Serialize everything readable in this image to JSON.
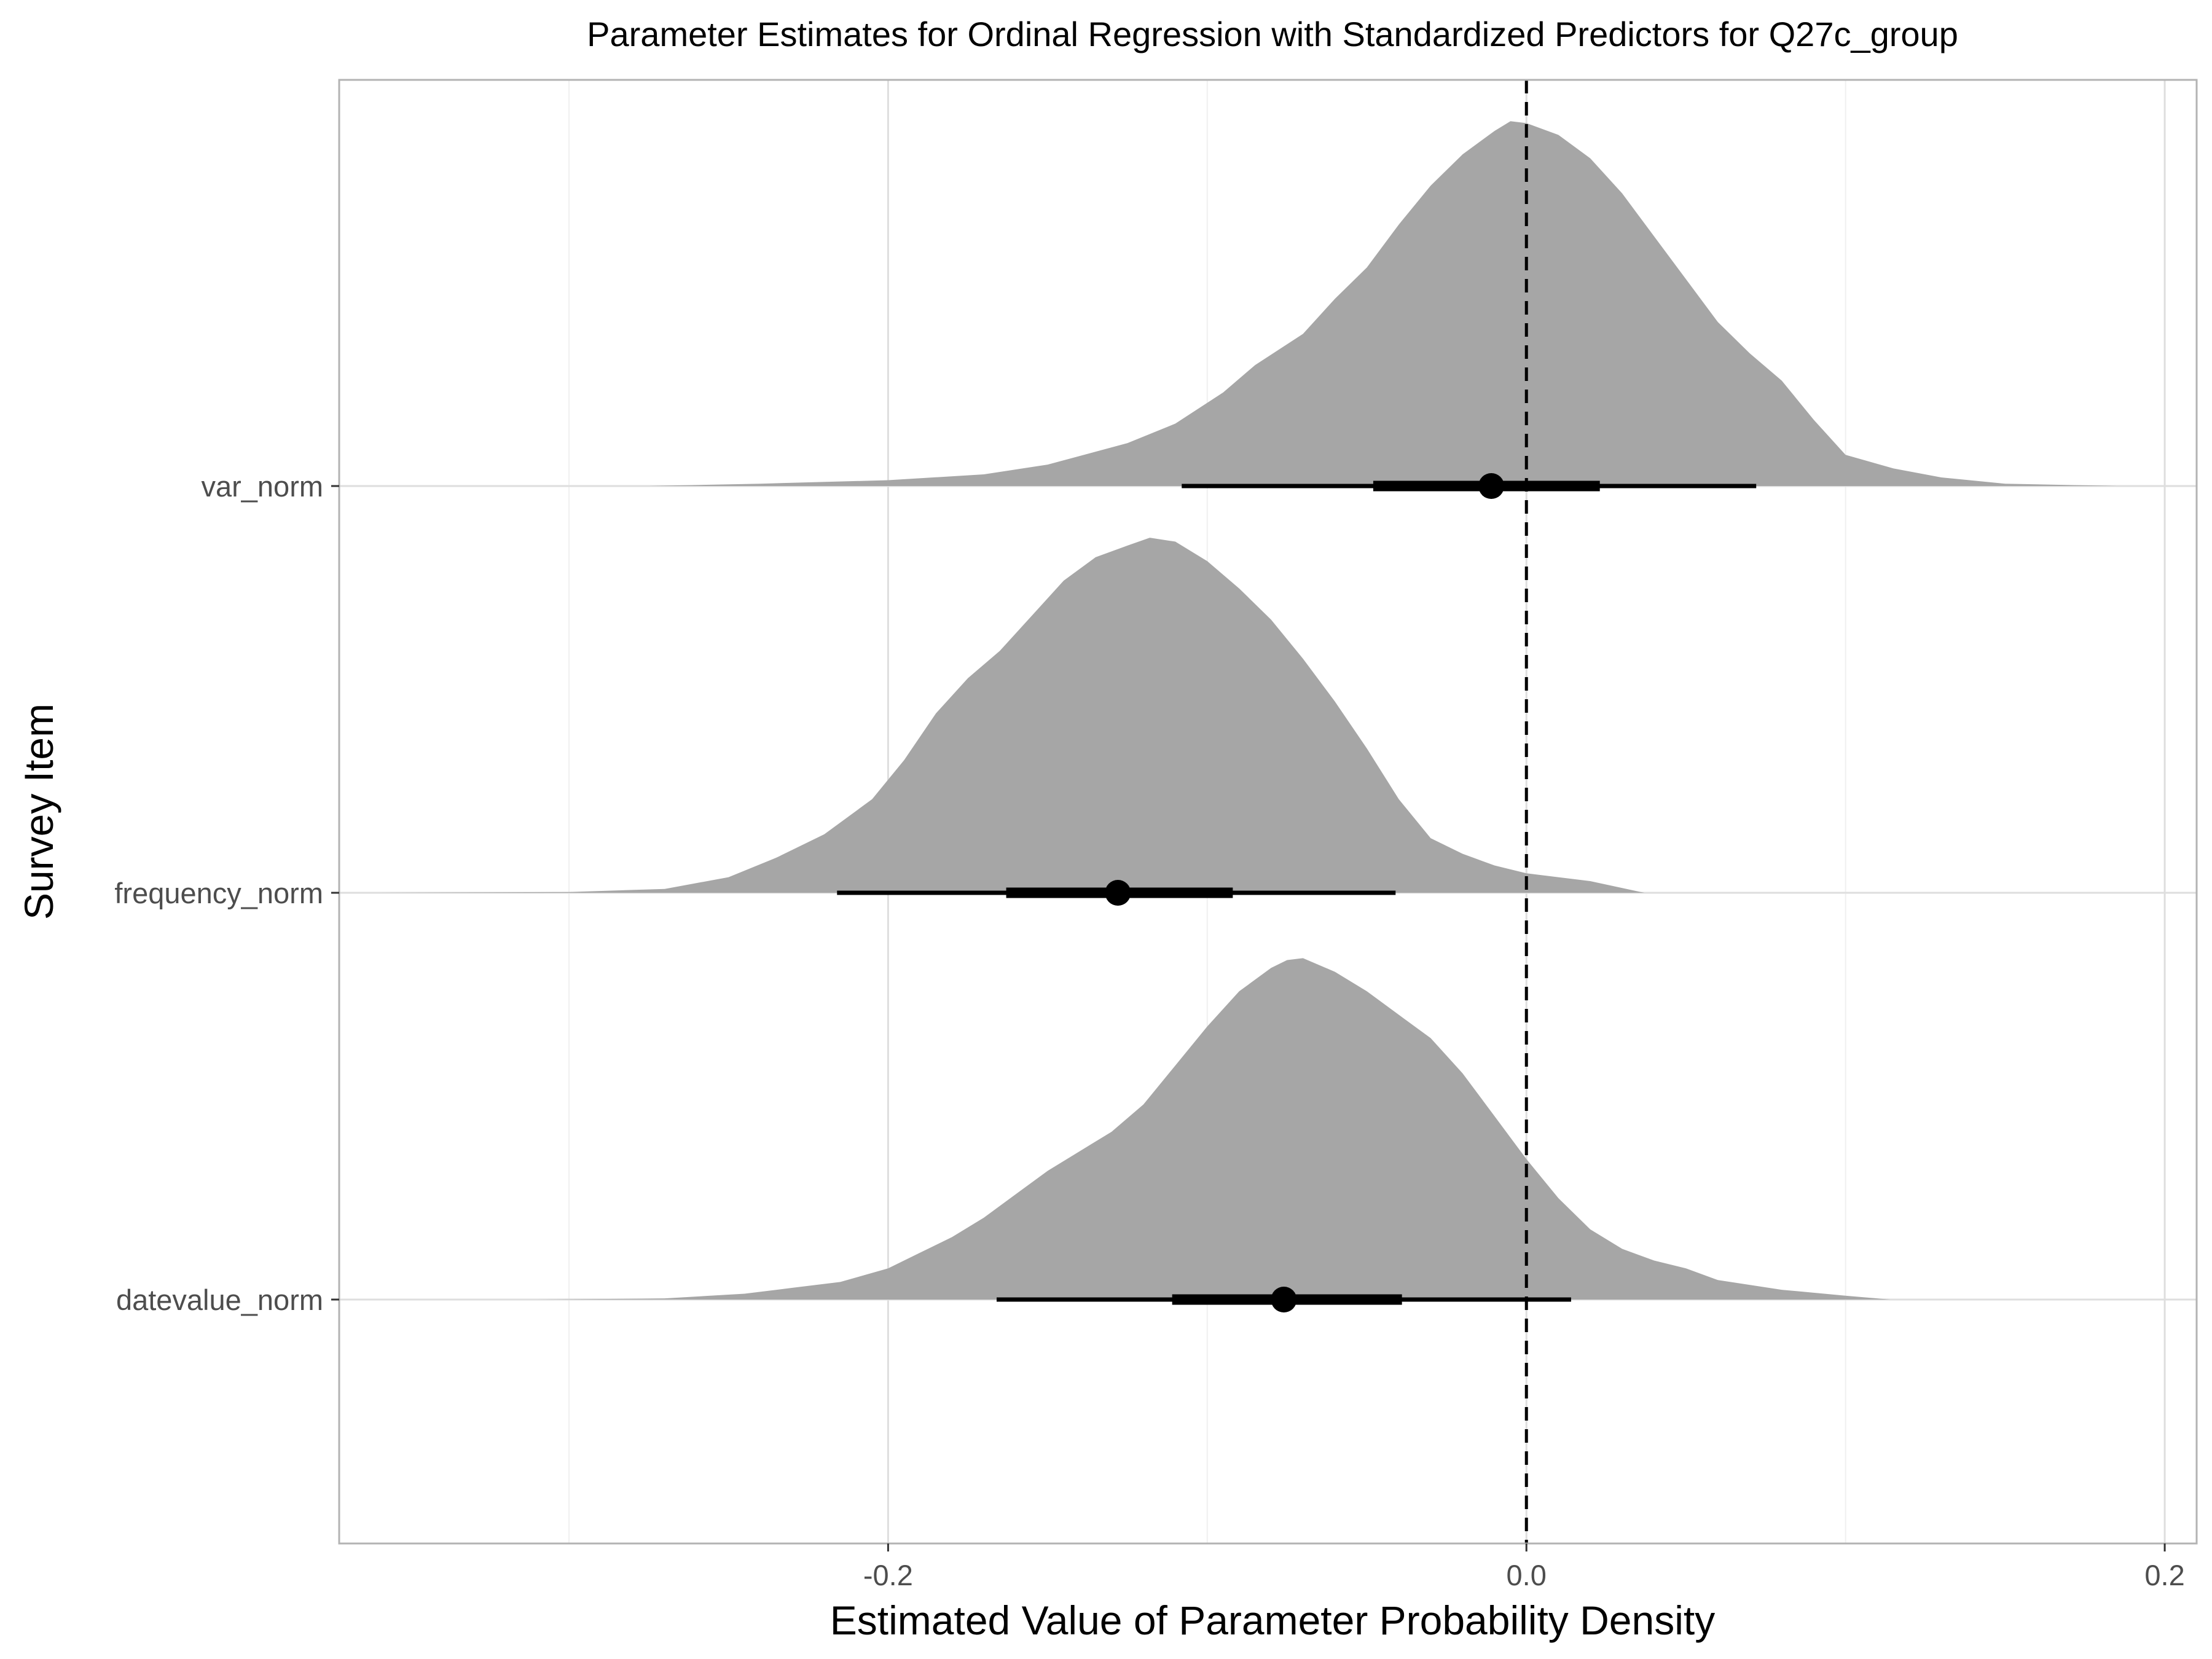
{
  "chart_data": {
    "type": "density",
    "title": "Parameter Estimates for Ordinal Regression with Standardized Predictors for Q27c_group",
    "xlabel": "Estimated Value of Parameter Probability Density",
    "ylabel": "Survey Item",
    "xlim": [
      -0.372,
      0.21
    ],
    "x_ticks": [
      -0.2,
      0.0,
      0.2
    ],
    "x_tick_labels": [
      "-0.2",
      "0.0",
      "0.2"
    ],
    "grid": true,
    "reference_line": {
      "x": 0.0,
      "style": "dashed"
    },
    "fill_color": "#a6a6a6",
    "interval_color": "#000000",
    "categories": [
      "var_norm",
      "frequency_norm",
      "datevalue_norm"
    ],
    "series": [
      {
        "name": "var_norm",
        "median": -0.011,
        "interval_66": [
          -0.048,
          0.023
        ],
        "interval_95": [
          -0.108,
          0.072
        ],
        "density": [
          [
            -0.275,
            0.0
          ],
          [
            -0.24,
            0.006
          ],
          [
            -0.2,
            0.015
          ],
          [
            -0.17,
            0.03
          ],
          [
            -0.15,
            0.055
          ],
          [
            -0.125,
            0.11
          ],
          [
            -0.11,
            0.16
          ],
          [
            -0.095,
            0.24
          ],
          [
            -0.085,
            0.31
          ],
          [
            -0.07,
            0.39
          ],
          [
            -0.06,
            0.48
          ],
          [
            -0.05,
            0.56
          ],
          [
            -0.04,
            0.67
          ],
          [
            -0.03,
            0.77
          ],
          [
            -0.02,
            0.85
          ],
          [
            -0.01,
            0.91
          ],
          [
            -0.005,
            0.935
          ],
          [
            0.0,
            0.93
          ],
          [
            0.01,
            0.9
          ],
          [
            0.02,
            0.84
          ],
          [
            0.03,
            0.75
          ],
          [
            0.04,
            0.64
          ],
          [
            0.05,
            0.53
          ],
          [
            0.06,
            0.42
          ],
          [
            0.07,
            0.34
          ],
          [
            0.08,
            0.27
          ],
          [
            0.09,
            0.17
          ],
          [
            0.1,
            0.08
          ],
          [
            0.115,
            0.045
          ],
          [
            0.13,
            0.022
          ],
          [
            0.15,
            0.006
          ],
          [
            0.185,
            0.0
          ]
        ]
      },
      {
        "name": "frequency_norm",
        "median": -0.128,
        "interval_66": [
          -0.163,
          -0.092
        ],
        "interval_95": [
          -0.216,
          -0.041
        ],
        "density": [
          [
            -0.36,
            0.0
          ],
          [
            -0.3,
            0.002
          ],
          [
            -0.27,
            0.01
          ],
          [
            -0.25,
            0.04
          ],
          [
            -0.235,
            0.09
          ],
          [
            -0.22,
            0.15
          ],
          [
            -0.205,
            0.24
          ],
          [
            -0.195,
            0.34
          ],
          [
            -0.185,
            0.46
          ],
          [
            -0.175,
            0.55
          ],
          [
            -0.165,
            0.62
          ],
          [
            -0.155,
            0.71
          ],
          [
            -0.145,
            0.8
          ],
          [
            -0.135,
            0.86
          ],
          [
            -0.125,
            0.89
          ],
          [
            -0.118,
            0.91
          ],
          [
            -0.11,
            0.9
          ],
          [
            -0.1,
            0.85
          ],
          [
            -0.09,
            0.78
          ],
          [
            -0.08,
            0.7
          ],
          [
            -0.07,
            0.6
          ],
          [
            -0.06,
            0.49
          ],
          [
            -0.05,
            0.37
          ],
          [
            -0.04,
            0.24
          ],
          [
            -0.03,
            0.14
          ],
          [
            -0.02,
            0.1
          ],
          [
            -0.01,
            0.07
          ],
          [
            0.0,
            0.05
          ],
          [
            0.02,
            0.03
          ],
          [
            0.037,
            0.0
          ]
        ]
      },
      {
        "name": "datevalue_norm",
        "median": -0.076,
        "interval_66": [
          -0.111,
          -0.039
        ],
        "interval_95": [
          -0.166,
          0.014
        ],
        "density": [
          [
            -0.31,
            0.0
          ],
          [
            -0.27,
            0.003
          ],
          [
            -0.245,
            0.015
          ],
          [
            -0.23,
            0.03
          ],
          [
            -0.215,
            0.045
          ],
          [
            -0.2,
            0.08
          ],
          [
            -0.19,
            0.12
          ],
          [
            -0.18,
            0.16
          ],
          [
            -0.17,
            0.21
          ],
          [
            -0.16,
            0.27
          ],
          [
            -0.15,
            0.33
          ],
          [
            -0.14,
            0.38
          ],
          [
            -0.13,
            0.43
          ],
          [
            -0.12,
            0.5
          ],
          [
            -0.11,
            0.6
          ],
          [
            -0.1,
            0.7
          ],
          [
            -0.09,
            0.79
          ],
          [
            -0.08,
            0.85
          ],
          [
            -0.075,
            0.87
          ],
          [
            -0.07,
            0.875
          ],
          [
            -0.06,
            0.84
          ],
          [
            -0.05,
            0.79
          ],
          [
            -0.04,
            0.73
          ],
          [
            -0.03,
            0.67
          ],
          [
            -0.02,
            0.58
          ],
          [
            -0.01,
            0.47
          ],
          [
            0.0,
            0.36
          ],
          [
            0.01,
            0.26
          ],
          [
            0.02,
            0.18
          ],
          [
            0.03,
            0.13
          ],
          [
            0.04,
            0.1
          ],
          [
            0.05,
            0.08
          ],
          [
            0.06,
            0.05
          ],
          [
            0.08,
            0.025
          ],
          [
            0.1,
            0.01
          ],
          [
            0.114,
            0.0
          ]
        ]
      }
    ]
  }
}
